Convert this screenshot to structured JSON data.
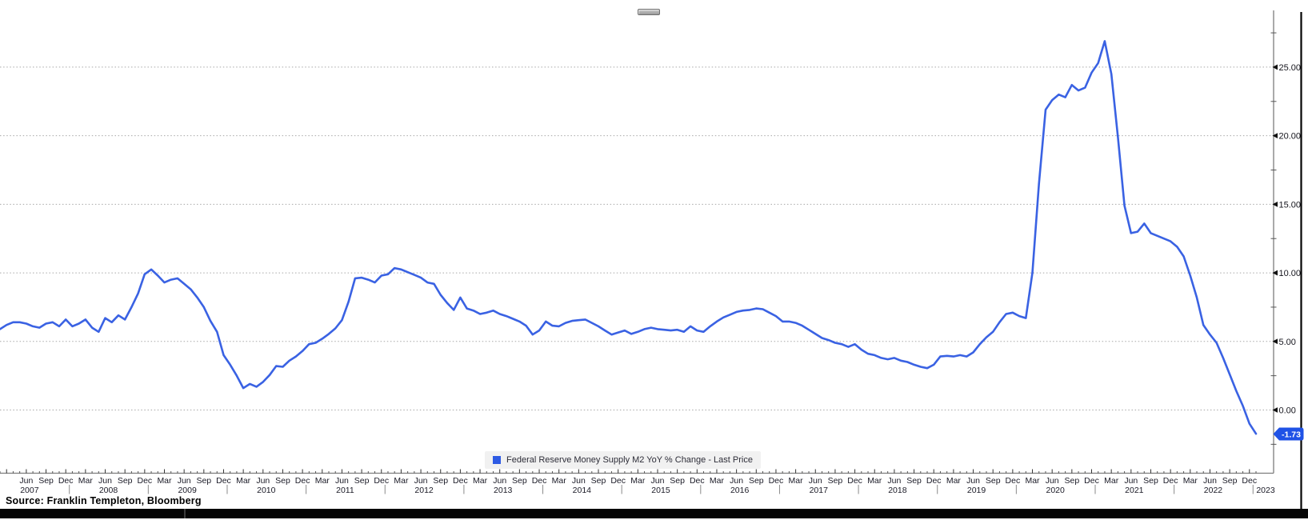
{
  "legend": {
    "label": "Federal Reserve Money Supply M2 YoY % Change - Last Price",
    "swatch_color": "#2e5be4"
  },
  "last_price": {
    "value": "-1.73",
    "badge_color": "#1f52e6"
  },
  "source_line": "Source: Franklin Templeton, Bloomberg",
  "chart_data": {
    "type": "line",
    "title": "",
    "series_name": "Federal Reserve Money Supply M2 YoY % Change - Last Price",
    "line_color": "#3a62e3",
    "grid": "horizontal dotted",
    "legend_position": "bottom-center",
    "y_axis_side": "right",
    "y_ticks": [
      0,
      5,
      10,
      15,
      20,
      25
    ],
    "y_tick_format": "0.00",
    "y_minor_step": 2.5,
    "ylim": [
      -4.6,
      29.2
    ],
    "x_start_month": "2007-02",
    "x_end_month": "2023-01",
    "frequency": "monthly",
    "month_labels": [
      "Mar",
      "Jun",
      "Sep",
      "Dec"
    ],
    "x_tick_years": [
      2007,
      2008,
      2009,
      2010,
      2011,
      2012,
      2013,
      2014,
      2015,
      2016,
      2017,
      2018,
      2019,
      2020,
      2021,
      2022,
      2023
    ],
    "values": [
      5.9,
      6.2,
      6.4,
      6.4,
      6.3,
      6.1,
      6.0,
      6.3,
      6.4,
      6.1,
      6.6,
      6.1,
      6.3,
      6.6,
      6.0,
      5.7,
      6.7,
      6.4,
      6.9,
      6.6,
      7.5,
      8.5,
      9.9,
      10.25,
      9.8,
      9.3,
      9.5,
      9.6,
      9.2,
      8.8,
      8.2,
      7.5,
      6.5,
      5.7,
      4.0,
      3.3,
      2.5,
      1.6,
      1.9,
      1.7,
      2.05,
      2.55,
      3.2,
      3.15,
      3.6,
      3.9,
      4.3,
      4.8,
      4.9,
      5.2,
      5.55,
      5.95,
      6.55,
      7.9,
      9.6,
      9.65,
      9.5,
      9.3,
      9.8,
      9.9,
      10.35,
      10.25,
      10.05,
      9.85,
      9.65,
      9.3,
      9.2,
      8.4,
      7.8,
      7.3,
      8.2,
      7.4,
      7.25,
      7.0,
      7.1,
      7.25,
      7.0,
      6.85,
      6.65,
      6.45,
      6.15,
      5.5,
      5.8,
      6.45,
      6.15,
      6.1,
      6.35,
      6.5,
      6.55,
      6.6,
      6.35,
      6.1,
      5.8,
      5.5,
      5.65,
      5.8,
      5.55,
      5.7,
      5.9,
      6.0,
      5.9,
      5.85,
      5.8,
      5.85,
      5.7,
      6.1,
      5.8,
      5.7,
      6.1,
      6.45,
      6.75,
      6.95,
      7.15,
      7.25,
      7.3,
      7.4,
      7.35,
      7.1,
      6.85,
      6.45,
      6.45,
      6.35,
      6.15,
      5.85,
      5.55,
      5.25,
      5.1,
      4.9,
      4.8,
      4.6,
      4.8,
      4.4,
      4.1,
      4.0,
      3.8,
      3.7,
      3.8,
      3.6,
      3.5,
      3.3,
      3.15,
      3.05,
      3.3,
      3.9,
      3.95,
      3.9,
      4.0,
      3.9,
      4.2,
      4.8,
      5.3,
      5.7,
      6.4,
      7.0,
      7.1,
      6.85,
      6.7,
      10.0,
      16.5,
      21.9,
      22.6,
      23.0,
      22.8,
      23.7,
      23.3,
      23.5,
      24.6,
      25.3,
      26.9,
      24.5,
      19.9,
      14.9,
      12.9,
      13.0,
      13.6,
      12.9,
      12.7,
      12.5,
      12.3,
      11.9,
      11.2,
      9.8,
      8.2,
      6.2,
      5.5,
      4.9,
      3.8,
      2.6,
      1.4,
      0.3,
      -1.0,
      -1.73
    ]
  }
}
